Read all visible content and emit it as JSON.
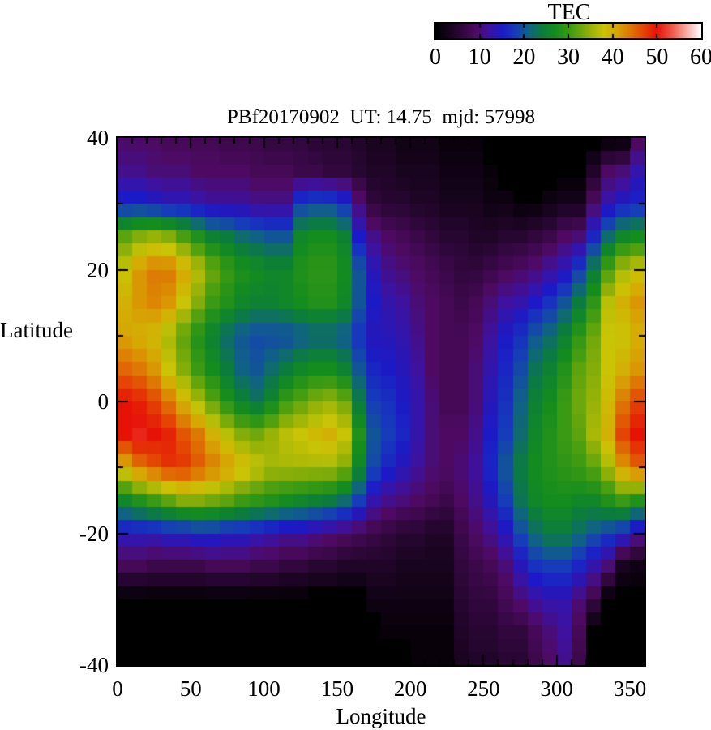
{
  "title": "PBf20170902  UT: 14.75  mjd: 57998",
  "colorbar": {
    "title": "TEC",
    "min": 0,
    "max": 60,
    "tick_labels": [
      "0",
      "10",
      "20",
      "30",
      "40",
      "50",
      "60"
    ],
    "tick_values": [
      0,
      10,
      20,
      30,
      40,
      50,
      60
    ]
  },
  "axes": {
    "x": {
      "label": "Longitude",
      "min": 0,
      "max": 360,
      "major_tick_values": [
        0,
        50,
        100,
        150,
        200,
        250,
        300,
        350
      ],
      "major_tick_labels": [
        "0",
        "50",
        "100",
        "150",
        "200",
        "250",
        "300",
        "350"
      ],
      "minor_step": 10
    },
    "y": {
      "label": "Latitude",
      "min": -40,
      "max": 40,
      "major_tick_values": [
        40,
        20,
        0,
        -20,
        -40
      ],
      "major_tick_labels": [
        "40",
        "20",
        "0",
        "-20",
        "-40"
      ],
      "minor_step": 10
    }
  },
  "chart_data": {
    "type": "heatmap",
    "title": "PBf20170902  UT: 14.75  mjd: 57998",
    "xlabel": "Longitude",
    "ylabel": "Latitude",
    "value_label": "TEC",
    "value_range": [
      0,
      60
    ],
    "x_range": [
      0,
      360
    ],
    "y_range": [
      -40,
      40
    ],
    "lon_cell_deg": 10,
    "lat_cell_deg": 2,
    "masked_color": "#000000",
    "mask_threshold": 1,
    "grid_lat_samples": [
      40,
      35,
      30,
      25,
      20,
      15,
      10,
      5,
      0,
      -5,
      -10,
      -15,
      -20,
      -25,
      -30,
      -35,
      -40
    ],
    "grid_lon_column_start_deg": [
      0,
      10,
      20,
      30,
      40,
      50,
      60,
      70,
      80,
      90,
      100,
      110,
      120,
      130,
      140,
      150,
      160,
      170,
      180,
      190,
      200,
      210,
      220,
      230,
      240,
      250,
      260,
      270,
      280,
      290,
      300,
      310,
      320,
      330,
      340,
      350
    ],
    "tec_grid_by_longitude_column": [
      [
        9,
        11,
        16,
        32,
        38,
        40,
        41,
        45,
        50,
        50,
        40,
        26,
        14,
        8,
        0,
        0,
        0
      ],
      [
        9,
        11,
        16,
        34,
        42,
        42,
        40,
        44,
        49,
        51,
        44,
        28,
        14,
        8,
        0,
        0,
        0
      ],
      [
        9,
        10,
        15,
        35,
        44,
        43,
        39,
        42,
        47,
        50,
        46,
        30,
        14,
        7,
        0,
        0,
        0
      ],
      [
        8,
        10,
        14,
        34,
        44,
        42,
        36,
        38,
        44,
        49,
        48,
        32,
        15,
        7,
        0,
        0,
        0
      ],
      [
        8,
        10,
        14,
        31,
        41,
        38,
        32,
        34,
        40,
        46,
        48,
        34,
        15,
        7,
        0,
        0,
        0
      ],
      [
        8,
        9,
        13,
        28,
        37,
        34,
        28,
        30,
        36,
        44,
        46,
        34,
        16,
        7,
        0,
        0,
        0
      ],
      [
        8,
        9,
        12,
        25,
        33,
        30,
        25,
        27,
        32,
        40,
        44,
        33,
        16,
        8,
        0,
        0,
        0
      ],
      [
        7,
        9,
        12,
        24,
        30,
        28,
        22,
        24,
        28,
        37,
        42,
        32,
        15,
        8,
        0,
        0,
        0
      ],
      [
        7,
        9,
        12,
        22,
        28,
        26,
        20,
        21,
        25,
        34,
        40,
        30,
        15,
        8,
        0,
        0,
        0
      ],
      [
        7,
        8,
        11,
        21,
        27,
        25,
        19,
        20,
        23,
        33,
        38,
        29,
        14,
        7,
        0,
        0,
        0
      ],
      [
        6,
        8,
        11,
        20,
        26,
        25,
        19,
        22,
        26,
        35,
        36,
        28,
        13,
        7,
        0,
        0,
        0
      ],
      [
        6,
        8,
        11,
        20,
        26,
        26,
        19,
        24,
        30,
        37,
        36,
        27,
        12,
        6,
        0,
        0,
        0
      ],
      [
        6,
        7,
        18,
        26,
        28,
        27,
        20,
        26,
        32,
        38,
        36,
        26,
        12,
        6,
        0,
        0,
        0
      ],
      [
        5,
        7,
        19,
        27,
        29,
        28,
        21,
        27,
        34,
        39,
        36,
        25,
        11,
        5,
        0,
        0,
        0
      ],
      [
        5,
        6,
        19,
        27,
        29,
        28,
        21,
        27,
        35,
        40,
        36,
        24,
        10,
        5,
        0,
        0,
        0
      ],
      [
        5,
        6,
        17,
        25,
        27,
        26,
        20,
        25,
        33,
        38,
        34,
        22,
        9,
        4,
        0,
        0,
        0
      ],
      [
        4,
        5,
        10,
        15,
        20,
        20,
        17,
        20,
        24,
        28,
        26,
        18,
        8,
        4,
        0,
        0,
        0
      ],
      [
        3,
        4,
        6,
        11,
        14,
        15,
        14,
        16,
        18,
        20,
        19,
        13,
        7,
        4,
        2,
        0,
        0
      ],
      [
        3,
        4,
        5,
        9,
        11,
        13,
        14,
        15,
        17,
        18,
        16,
        11,
        6,
        4,
        2,
        1,
        0
      ],
      [
        2,
        3,
        5,
        8,
        10,
        12,
        13,
        14,
        15,
        16,
        14,
        10,
        5,
        3,
        2,
        1,
        0
      ],
      [
        2,
        3,
        4,
        7,
        9,
        10,
        11,
        12,
        13,
        13,
        12,
        9,
        5,
        3,
        2,
        1,
        1
      ],
      [
        2,
        3,
        4,
        6,
        8,
        9,
        9,
        9,
        10,
        10,
        10,
        8,
        4,
        3,
        2,
        1,
        1
      ],
      [
        1,
        2,
        3,
        5,
        7,
        8,
        8,
        8,
        8,
        9,
        9,
        7,
        4,
        3,
        2,
        1,
        1
      ],
      [
        1,
        2,
        3,
        5,
        6,
        7,
        8,
        8,
        8,
        9,
        10,
        9,
        7,
        6,
        5,
        4,
        3
      ],
      [
        1,
        2,
        3,
        4,
        6,
        8,
        9,
        10,
        10,
        11,
        12,
        11,
        9,
        7,
        6,
        5,
        4
      ],
      [
        0,
        1,
        2,
        4,
        7,
        10,
        12,
        13,
        14,
        15,
        16,
        14,
        11,
        8,
        6,
        5,
        4
      ],
      [
        0,
        0,
        2,
        5,
        8,
        12,
        15,
        16,
        17,
        18,
        20,
        18,
        14,
        10,
        8,
        6,
        5
      ],
      [
        0,
        0,
        1,
        5,
        9,
        13,
        17,
        19,
        21,
        22,
        24,
        23,
        19,
        14,
        10,
        6,
        5
      ],
      [
        0,
        0,
        1,
        6,
        10,
        15,
        20,
        23,
        25,
        26,
        27,
        26,
        22,
        17,
        12,
        8,
        7
      ],
      [
        0,
        0,
        2,
        7,
        12,
        17,
        22,
        25,
        27,
        28,
        28,
        27,
        24,
        18,
        13,
        10,
        9
      ],
      [
        0,
        0,
        3,
        9,
        14,
        20,
        25,
        28,
        30,
        30,
        29,
        27,
        24,
        18,
        13,
        12,
        11
      ],
      [
        0,
        0,
        3,
        10,
        18,
        24,
        29,
        32,
        33,
        32,
        30,
        26,
        22,
        16,
        10,
        8,
        7
      ],
      [
        0,
        4,
        9,
        16,
        24,
        29,
        33,
        34,
        35,
        36,
        32,
        26,
        20,
        13,
        7,
        0,
        0
      ],
      [
        0,
        9,
        13,
        22,
        31,
        37,
        38,
        38,
        39,
        40,
        36,
        28,
        18,
        10,
        0,
        0,
        0
      ],
      [
        0,
        10,
        15,
        26,
        36,
        40,
        38,
        40,
        44,
        47,
        42,
        30,
        16,
        3,
        0,
        0,
        0
      ],
      [
        8,
        13,
        16,
        27,
        38,
        42,
        40,
        42,
        47,
        50,
        45,
        28,
        12,
        2,
        0,
        0,
        0
      ]
    ],
    "colormap_stops": [
      [
        0,
        0,
        0,
        0
      ],
      [
        5,
        40,
        6,
        50
      ],
      [
        9,
        78,
        10,
        98
      ],
      [
        12,
        62,
        18,
        158
      ],
      [
        15,
        28,
        26,
        198
      ],
      [
        18,
        22,
        60,
        186
      ],
      [
        21,
        16,
        98,
        132
      ],
      [
        24,
        12,
        124,
        62
      ],
      [
        27,
        20,
        140,
        30
      ],
      [
        31,
        72,
        158,
        16
      ],
      [
        35,
        152,
        178,
        8
      ],
      [
        38,
        202,
        196,
        6
      ],
      [
        41,
        214,
        166,
        4
      ],
      [
        44,
        222,
        120,
        4
      ],
      [
        47,
        228,
        68,
        4
      ],
      [
        50,
        230,
        18,
        8
      ],
      [
        53,
        236,
        78,
        62
      ],
      [
        56,
        246,
        152,
        142
      ],
      [
        60,
        255,
        255,
        255
      ]
    ],
    "legend_position": "top-right",
    "grid_lines": false
  }
}
